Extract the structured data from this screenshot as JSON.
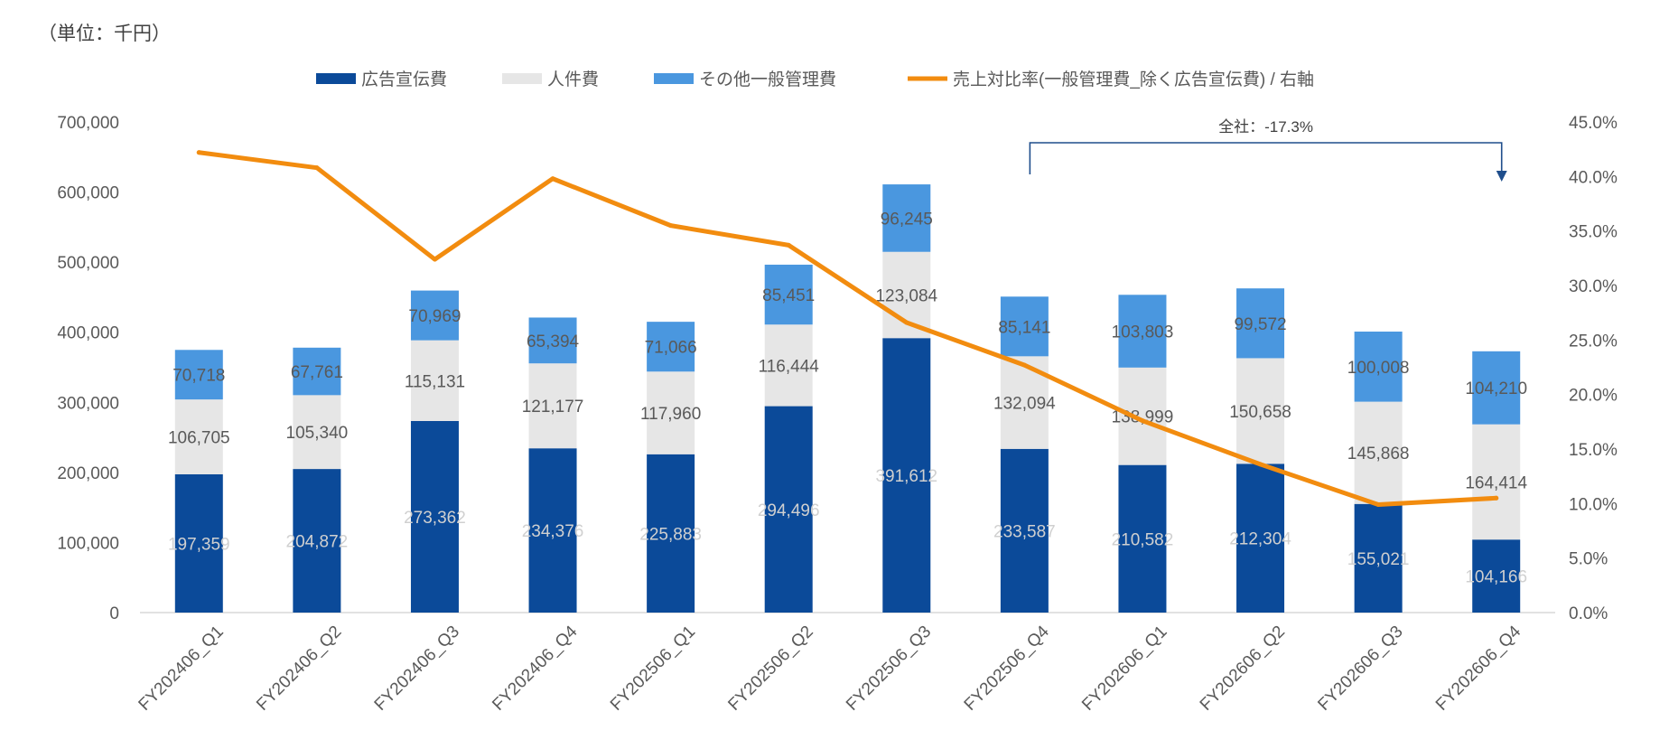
{
  "unit_note": "（単位：千円）",
  "chart_data": {
    "type": "bar",
    "stacked": true,
    "categories": [
      "FY202406_Q1",
      "FY202406_Q2",
      "FY202406_Q3",
      "FY202406_Q4",
      "FY202506_Q1",
      "FY202506_Q2",
      "FY202506_Q3",
      "FY202506_Q4",
      "FY202606_Q1",
      "FY202606_Q2",
      "FY202606_Q3",
      "FY202606_Q4"
    ],
    "series": [
      {
        "name": "広告宣伝費",
        "type": "bar",
        "color": "#0B4A99",
        "label_color": "#D0D0D0",
        "values": [
          197359,
          204872,
          273362,
          234376,
          225883,
          294496,
          391612,
          233587,
          210582,
          212304,
          155021,
          104166
        ],
        "labels": [
          "197,359",
          "204,872",
          "273,362",
          "234,376",
          "225,883",
          "294,496",
          "391,612",
          "233,587",
          "210,582",
          "212,304",
          "155,021",
          "104,166"
        ]
      },
      {
        "name": "人件費",
        "type": "bar",
        "color": "#E6E6E6",
        "label_color": "#595959",
        "values": [
          106705,
          105340,
          115131,
          121177,
          117960,
          116444,
          123084,
          132094,
          138999,
          150658,
          145868,
          164414
        ],
        "labels": [
          "106,705",
          "105,340",
          "115,131",
          "121,177",
          "117,960",
          "116,444",
          "123,084",
          "132,094",
          "138,999",
          "150,658",
          "145,868",
          "164,414"
        ]
      },
      {
        "name": "その他一般管理費",
        "type": "bar",
        "color": "#4A97DF",
        "label_color": "#595959",
        "values": [
          70718,
          67761,
          70969,
          65394,
          71066,
          85451,
          96245,
          85141,
          103803,
          99572,
          100008,
          104210
        ],
        "labels": [
          "70,718",
          "67,761",
          "70,969",
          "65,394",
          "71,066",
          "85,451",
          "96,245",
          "85,141",
          "103,803",
          "99,572",
          "100,008",
          "104,210"
        ]
      },
      {
        "name": "売上対比率(一般管理費_除く広告宣伝費) / 右軸",
        "type": "line",
        "axis": "right",
        "color": "#F28C0F",
        "values": [
          42.2,
          40.8,
          32.4,
          39.8,
          35.5,
          33.7,
          26.6,
          22.7,
          17.6,
          13.6,
          9.9,
          10.5
        ]
      }
    ],
    "y_left": {
      "min": 0,
      "max": 700000,
      "ticks": [
        0,
        100000,
        200000,
        300000,
        400000,
        500000,
        600000,
        700000
      ],
      "tick_labels": [
        "0",
        "100,000",
        "200,000",
        "300,000",
        "400,000",
        "500,000",
        "600,000",
        "700,000"
      ]
    },
    "y_right": {
      "min": 0,
      "max": 45,
      "ticks": [
        0,
        5,
        10,
        15,
        20,
        25,
        30,
        35,
        40,
        45
      ],
      "tick_labels": [
        "0.0%",
        "5.0%",
        "10.0%",
        "15.0%",
        "20.0%",
        "25.0%",
        "30.0%",
        "35.0%",
        "40.0%",
        "45.0%"
      ]
    },
    "annotation": {
      "text": "全社：-17.3%",
      "from_category": 7,
      "to_category": 11
    },
    "legend": {
      "position": "top"
    },
    "grid": false,
    "title": "",
    "xlabel": "",
    "ylabel": ""
  }
}
